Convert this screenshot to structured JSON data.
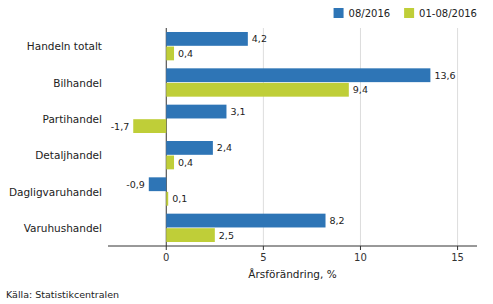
{
  "chart_data": {
    "type": "bar",
    "orientation": "horizontal",
    "categories": [
      "Varuhushandel",
      "Dagligvaruhandel",
      "Detaljhandel",
      "Partihandel",
      "Bilhandel",
      "Handeln totalt"
    ],
    "series": [
      {
        "name": "08/2016",
        "color": "#2e75b6",
        "values": [
          8.2,
          -0.9,
          2.4,
          3.1,
          13.6,
          4.2
        ],
        "value_labels": [
          "8,2",
          "-0,9",
          "2,4",
          "3,1",
          "13,6",
          "4,2"
        ]
      },
      {
        "name": "01-08/2016",
        "color": "#bfce38",
        "values": [
          2.5,
          0.1,
          0.4,
          -1.7,
          9.4,
          0.4
        ],
        "value_labels": [
          "2,5",
          "0,1",
          "0,4",
          "-1,7",
          "9,4",
          "0,4"
        ]
      }
    ],
    "xlabel": "Årsförändring, %",
    "annotations": [
      "Källa: Statistikcentralen"
    ],
    "xlim": [
      -3,
      16
    ],
    "xticks": [
      0,
      5,
      10,
      15
    ],
    "grid": true,
    "legend": "upper right",
    "data_labels": true
  }
}
